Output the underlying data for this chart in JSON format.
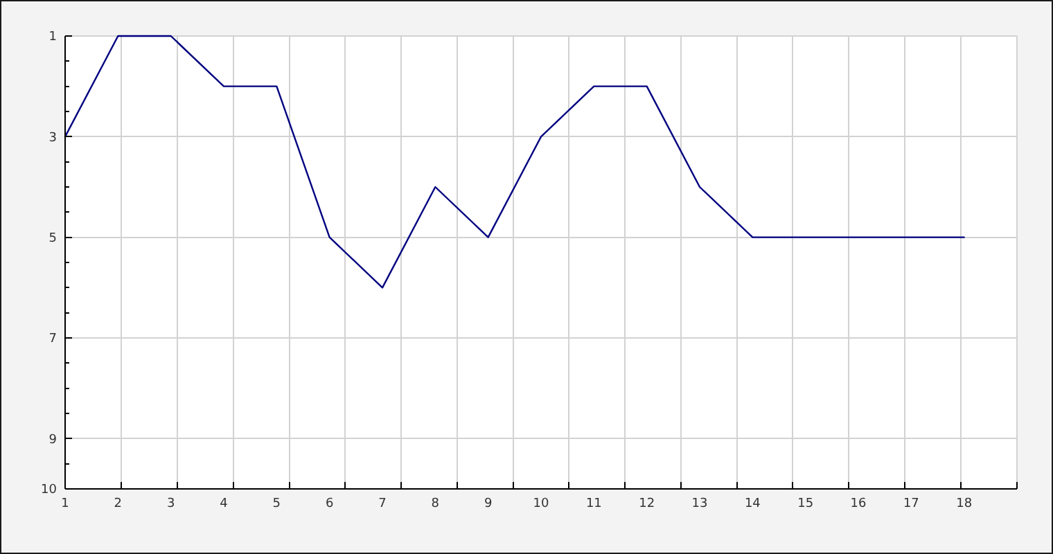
{
  "chart_data": {
    "type": "line",
    "x": [
      1,
      2,
      3,
      4,
      5,
      6,
      7,
      8,
      9,
      10,
      11,
      12,
      13,
      14,
      15,
      16,
      17,
      18
    ],
    "values": [
      3,
      1,
      1,
      2,
      2,
      5,
      6,
      4,
      5,
      3,
      2,
      2,
      4,
      5,
      5,
      5,
      5,
      5
    ],
    "color": "#000080",
    "xlim": [
      1,
      19
    ],
    "ylim": [
      10,
      1
    ],
    "xticks": [
      1,
      2,
      {
        "value": 2.06,
        "label": null
      },
      3,
      {
        "value": 3.12,
        "label": null
      },
      4,
      {
        "value": 4.18,
        "label": null
      },
      5,
      {
        "value": 5.24,
        "label": null
      },
      6,
      {
        "value": 6.29,
        "label": null
      },
      7,
      {
        "value": 7.35,
        "label": null
      },
      8,
      {
        "value": 8.41,
        "label": null
      },
      9,
      {
        "value": 9.47,
        "label": null
      },
      10,
      {
        "value": 10.53,
        "label": null
      },
      11,
      {
        "value": 11.59,
        "label": null
      },
      12,
      {
        "value": 12.65,
        "label": null
      },
      13,
      {
        "value": 13.71,
        "label": null
      },
      14,
      {
        "value": 14.76,
        "label": null
      },
      15,
      {
        "value": 15.82,
        "label": null
      },
      16,
      {
        "value": 16.88,
        "label": null
      },
      17,
      {
        "value": 17.94,
        "label": null
      },
      18,
      {
        "value": 19,
        "label": null
      }
    ],
    "yticks": [
      1,
      {
        "value": 1.5,
        "label": null
      },
      {
        "value": 2,
        "label": null
      },
      {
        "value": 2.5,
        "label": null
      },
      3,
      {
        "value": 3.5,
        "label": null
      },
      {
        "value": 4,
        "label": null
      },
      {
        "value": 4.5,
        "label": null
      },
      5,
      {
        "value": 5.5,
        "label": null
      },
      {
        "value": 6,
        "label": null
      },
      {
        "value": 6.5,
        "label": null
      },
      7,
      {
        "value": 7.5,
        "label": null
      },
      {
        "value": 8,
        "label": null
      },
      {
        "value": 8.5,
        "label": null
      },
      9,
      {
        "value": 9.5,
        "label": null
      },
      10
    ],
    "grid": true
  }
}
